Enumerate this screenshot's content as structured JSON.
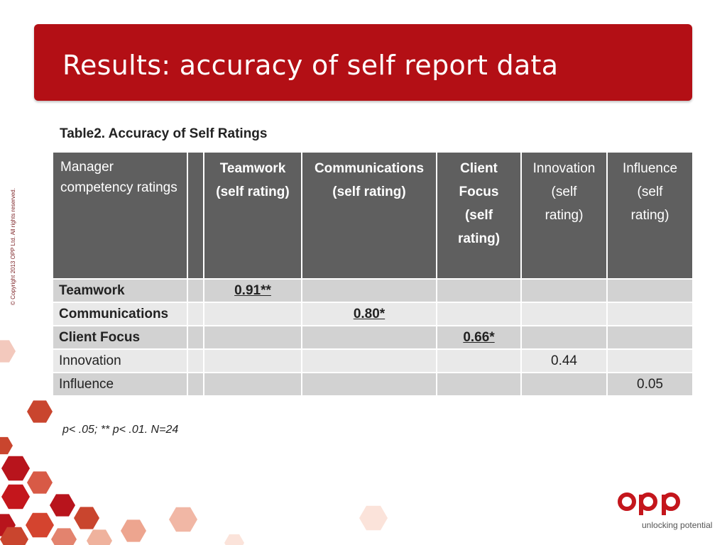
{
  "title": "Results: accuracy of self report data",
  "copyright": "© Copyright 2013 OPP Ltd. All rights reserved.",
  "table_title": "Table2. Accuracy of Self Ratings",
  "table": {
    "row_header": "Manager competency ratings",
    "columns": [
      {
        "line1": "Teamwork",
        "line2": "(self rating)"
      },
      {
        "line1": "Communications",
        "line2": "(self rating)"
      },
      {
        "line1": "Client Focus",
        "line2": "(self rating)"
      },
      {
        "line1": "Innovation",
        "line2": "(self rating)"
      },
      {
        "line1": "Influence",
        "line2": "(self rating)"
      }
    ],
    "rows": [
      {
        "label": "Teamwork",
        "values": [
          "0.91**",
          "",
          "",
          "",
          ""
        ]
      },
      {
        "label": "Communications",
        "values": [
          "",
          "0.80*",
          "",
          "",
          ""
        ]
      },
      {
        "label": "Client Focus",
        "values": [
          "",
          "",
          "0.66*",
          "",
          ""
        ]
      },
      {
        "label": "Innovation",
        "values": [
          "",
          "",
          "",
          "0.44",
          ""
        ]
      },
      {
        "label": "Influence",
        "values": [
          "",
          "",
          "",
          "",
          "0.05"
        ]
      }
    ]
  },
  "footnote": "p< .05; ** p< .01. N=24",
  "logo": {
    "name": "opp",
    "tagline": "unlocking potential"
  },
  "colors": {
    "brand_red": "#b30f15",
    "header_gray": "#5f5f5f",
    "row_dark": "#d2d2d2",
    "row_light": "#e9e9e9"
  }
}
